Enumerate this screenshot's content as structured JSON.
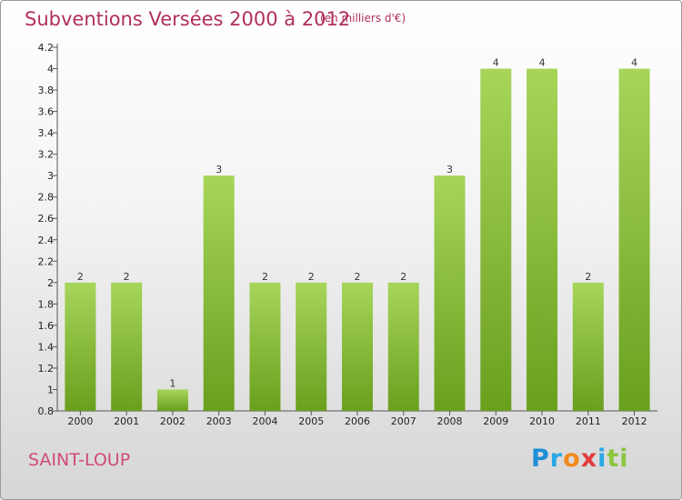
{
  "title": "Subventions Versées 2000 à 2012",
  "unit_note": "(en milliers d'€)",
  "place_name": "SAINT-LOUP",
  "logo": {
    "letters": [
      "P",
      "r",
      "o",
      "x",
      "i",
      "t",
      "i"
    ],
    "colors": [
      "#1d8fd6",
      "#2aa7e6",
      "#f08a1a",
      "#e23b3b",
      "#2aa7e6",
      "#8cc63f",
      "#8cc63f"
    ]
  },
  "colors": {
    "bar_top": "#a6d55a",
    "bar_bottom": "#6a9f1e",
    "axis": "#555555",
    "title": "#b0305a"
  },
  "chart_data": {
    "type": "bar",
    "categories": [
      "2000",
      "2001",
      "2002",
      "2003",
      "2004",
      "2005",
      "2006",
      "2007",
      "2008",
      "2009",
      "2010",
      "2011",
      "2012"
    ],
    "values": [
      2,
      2,
      1,
      3,
      2,
      2,
      2,
      2,
      3,
      4,
      4,
      2,
      4
    ],
    "data_labels": [
      "2",
      "2",
      "1",
      "3",
      "2",
      "2",
      "2",
      "2",
      "3",
      "4",
      "4",
      "2",
      "4"
    ],
    "ylim": [
      0.8,
      4.2
    ],
    "yticks": [
      0.8,
      1,
      1.2,
      1.4,
      1.6,
      1.8,
      2,
      2.2,
      2.4,
      2.6,
      2.8,
      3,
      3.2,
      3.4,
      3.6,
      3.8,
      4,
      4.2
    ],
    "ytick_labels": [
      "0.8",
      "1",
      "1.2",
      "1.4",
      "1.6",
      "1.8",
      "2",
      "2.2",
      "2.4",
      "2.6",
      "2.8",
      "3",
      "3.2",
      "3.4",
      "3.6",
      "3.8",
      "4",
      "4.2"
    ],
    "title": "Subventions Versées 2000 à 2012",
    "xlabel": "",
    "ylabel": "",
    "grid": false,
    "legend": "none"
  }
}
